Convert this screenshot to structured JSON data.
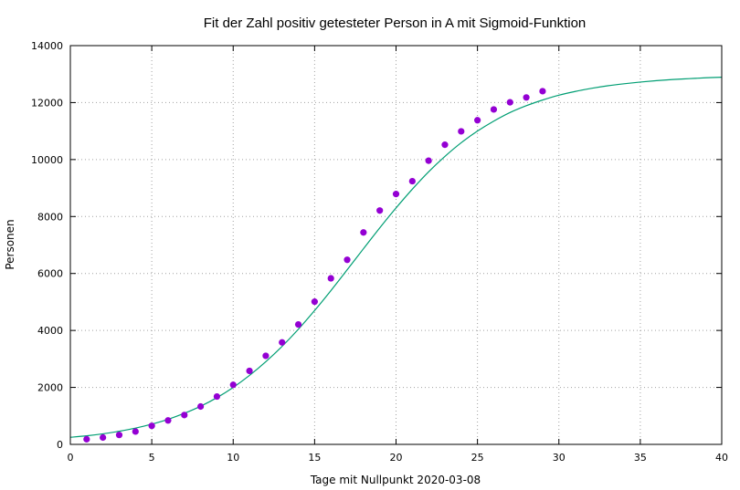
{
  "chart_data": {
    "type": "scatter",
    "title": "Fit der Zahl positiv getesteter Person in A mit Sigmoid-Funktion",
    "xlabel": "Tage mit Nullpunkt 2020-03-08",
    "ylabel": "Personen",
    "xlim": [
      0,
      40
    ],
    "ylim": [
      0,
      14000
    ],
    "xticks": [
      0,
      5,
      10,
      15,
      20,
      25,
      30,
      35,
      40
    ],
    "yticks": [
      0,
      2000,
      4000,
      6000,
      8000,
      10000,
      12000,
      14000
    ],
    "grid": true,
    "legend": "none",
    "colors": {
      "points": "#9400d3",
      "fit": "#009e73"
    },
    "series": [
      {
        "kind": "points",
        "x": [
          1,
          2,
          3,
          4,
          5,
          6,
          7,
          8,
          9,
          10,
          11,
          12,
          13,
          14,
          15,
          16,
          17,
          18,
          19,
          20,
          21,
          22,
          23,
          24,
          25,
          26,
          27,
          28,
          29
        ],
        "y": [
          180,
          240,
          330,
          450,
          650,
          840,
          1030,
          1330,
          1680,
          2090,
          2580,
          3110,
          3580,
          4210,
          5010,
          5830,
          6480,
          7440,
          8210,
          8790,
          9240,
          9960,
          10520,
          10990,
          11380,
          11760,
          12010,
          12180,
          12400
        ]
      },
      {
        "kind": "fit",
        "x": [
          0,
          1,
          2,
          3,
          4,
          5,
          6,
          7,
          8,
          9,
          10,
          11,
          12,
          13,
          14,
          15,
          16,
          17,
          18,
          19,
          20,
          21,
          22,
          23,
          24,
          25,
          26,
          27,
          28,
          29,
          30,
          31,
          32,
          33,
          34,
          35,
          36,
          37,
          38,
          39,
          40
        ],
        "y": [
          250,
          300,
          370,
          460,
          570,
          710,
          880,
          1090,
          1340,
          1640,
          2000,
          2420,
          2900,
          3440,
          4040,
          4700,
          5400,
          6130,
          6870,
          7600,
          8300,
          8960,
          9570,
          10110,
          10590,
          11000,
          11350,
          11650,
          11890,
          12090,
          12260,
          12390,
          12500,
          12590,
          12660,
          12720,
          12770,
          12810,
          12840,
          12870,
          12890
        ]
      }
    ]
  }
}
